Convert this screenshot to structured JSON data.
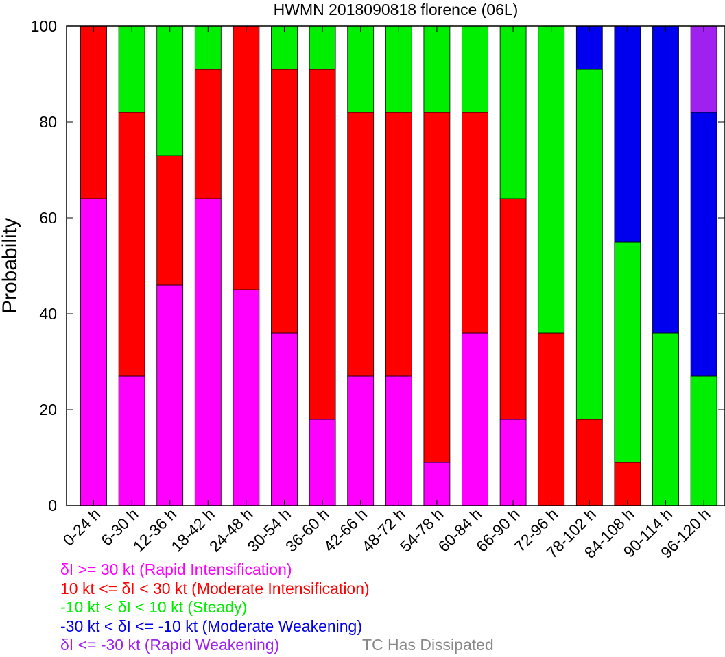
{
  "chart_data": {
    "type": "bar",
    "stacked": true,
    "title": "HWMN 2018090818 florence (06L)",
    "ylabel": "Probability",
    "ylim": [
      0,
      100
    ],
    "yticks": [
      0,
      20,
      40,
      60,
      80,
      100
    ],
    "categories": [
      "0-24 h",
      "6-30 h",
      "12-36 h",
      "18-42 h",
      "24-48 h",
      "30-54 h",
      "36-60 h",
      "42-66 h",
      "48-72 h",
      "54-78 h",
      "60-84 h",
      "66-90 h",
      "72-96 h",
      "78-102 h",
      "84-108 h",
      "90-114 h",
      "96-120 h"
    ],
    "series": [
      {
        "key": "ri",
        "color": "#ff00ff",
        "values": [
          64,
          27,
          46,
          64,
          45,
          36,
          18,
          27,
          27,
          9,
          36,
          18,
          0,
          0,
          0,
          0,
          0
        ]
      },
      {
        "key": "mi",
        "color": "#ff0000",
        "values": [
          36,
          55,
          27,
          27,
          55,
          55,
          73,
          55,
          55,
          73,
          46,
          46,
          36,
          18,
          9,
          0,
          0
        ]
      },
      {
        "key": "st",
        "color": "#00ee00",
        "values": [
          0,
          18,
          27,
          9,
          0,
          9,
          9,
          18,
          18,
          18,
          18,
          36,
          64,
          73,
          46,
          36,
          27
        ]
      },
      {
        "key": "mw",
        "color": "#0000ee",
        "values": [
          0,
          0,
          0,
          0,
          0,
          0,
          0,
          0,
          0,
          0,
          0,
          0,
          0,
          9,
          45,
          64,
          55
        ]
      },
      {
        "key": "rw",
        "color": "#a020f0",
        "values": [
          0,
          0,
          0,
          0,
          0,
          0,
          0,
          0,
          0,
          0,
          0,
          0,
          0,
          0,
          0,
          0,
          18
        ]
      }
    ],
    "grid": false
  },
  "legend": {
    "items": [
      {
        "text": "δI >= 30 kt (Rapid Intensification)",
        "color": "#ff00ff"
      },
      {
        "text": "10 kt <= δI < 30 kt (Moderate Intensification)",
        "color": "#ff0000"
      },
      {
        "text": "-10 kt < δI < 10 kt (Steady)",
        "color": "#00ee00"
      },
      {
        "text": "-30 kt < δI <= -10 kt (Moderate Weakening)",
        "color": "#0000ee"
      },
      {
        "text": "δI <= -30 kt (Rapid Weakening)",
        "color": "#a020f0"
      }
    ],
    "dissipated": "TC Has Dissipated"
  }
}
